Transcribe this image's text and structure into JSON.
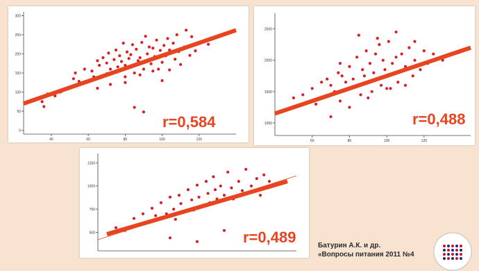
{
  "accent_color": "#e8441f",
  "point_color": "#d81e24",
  "chart_data": [
    {
      "type": "scatter",
      "title": "",
      "xlabel": "",
      "ylabel": "",
      "xlim": [
        25,
        140
      ],
      "ylim": [
        -10,
        310
      ],
      "xticks": [
        40,
        60,
        80,
        100,
        120
      ],
      "yticks": [
        0,
        50,
        100,
        150,
        200,
        250,
        300
      ],
      "r_label": "r=0,584",
      "fit": {
        "x": [
          25,
          140
        ],
        "y": [
          70,
          262
        ]
      },
      "grid": false,
      "x": [
        35,
        36,
        38,
        42,
        45,
        52,
        53,
        55,
        58,
        62,
        63,
        65,
        66,
        68,
        70,
        70,
        71,
        72,
        74,
        75,
        76,
        77,
        78,
        79,
        80,
        80,
        81,
        82,
        83,
        84,
        85,
        86,
        87,
        88,
        89,
        90,
        91,
        92,
        93,
        94,
        95,
        96,
        97,
        98,
        99,
        100,
        101,
        102,
        103,
        104,
        105,
        106,
        107,
        108,
        109,
        110,
        112,
        113,
        115,
        116,
        118,
        120,
        125,
        130,
        85,
        90,
        100,
        65,
        72,
        80,
        88,
        95,
        104
      ],
      "y": [
        75,
        62,
        95,
        90,
        100,
        135,
        150,
        128,
        160,
        155,
        140,
        182,
        170,
        190,
        148,
        176,
        202,
        160,
        185,
        210,
        166,
        195,
        180,
        228,
        170,
        140,
        205,
        188,
        198,
        224,
        150,
        212,
        182,
        190,
        230,
        160,
        246,
        200,
        218,
        174,
        215,
        193,
        236,
        160,
        209,
        178,
        222,
        195,
        240,
        158,
        205,
        228,
        186,
        250,
        206,
        172,
        218,
        262,
        196,
        245,
        208,
        230,
        225,
        245,
        60,
        48,
        130,
        110,
        120,
        125,
        145,
        155,
        210
      ]
    },
    {
      "type": "scatter",
      "title": "",
      "xlabel": "",
      "ylabel": "",
      "xlim": [
        40,
        145
      ],
      "ylim": [
        800,
        2750
      ],
      "xticks": [
        60,
        80,
        100,
        120
      ],
      "yticks": [
        1000,
        1500,
        2000,
        2500
      ],
      "r_label": "r=0,488",
      "fit": {
        "x": [
          40,
          145
        ],
        "y": [
          1150,
          2200
        ]
      },
      "grid": false,
      "x": [
        50,
        55,
        60,
        62,
        65,
        68,
        70,
        72,
        74,
        75,
        76,
        78,
        80,
        81,
        82,
        84,
        85,
        86,
        87,
        88,
        89,
        90,
        91,
        92,
        93,
        94,
        95,
        96,
        97,
        98,
        99,
        100,
        101,
        102,
        103,
        104,
        105,
        106,
        108,
        110,
        112,
        114,
        115,
        118,
        120,
        122,
        125,
        130,
        70,
        80,
        90,
        100,
        110,
        85,
        95,
        105,
        115,
        75
      ],
      "y": [
        1400,
        1450,
        1550,
        1300,
        1650,
        1700,
        1600,
        1500,
        1800,
        1350,
        1750,
        1650,
        1900,
        1550,
        1700,
        2050,
        1600,
        1450,
        1850,
        1750,
        2150,
        1650,
        1950,
        1500,
        1800,
        2100,
        1700,
        2250,
        1600,
        2000,
        1850,
        1750,
        2300,
        1550,
        1950,
        1800,
        2050,
        1650,
        2100,
        1900,
        2200,
        1750,
        2000,
        1850,
        2150,
        1950,
        2100,
        2000,
        1100,
        1250,
        1400,
        1550,
        1600,
        2400,
        2350,
        2450,
        2300,
        1950
      ]
    },
    {
      "type": "scatter",
      "title": "",
      "xlabel": "",
      "ylabel": "",
      "xlim": [
        20,
        130
      ],
      "ylim": [
        300,
        1350
      ],
      "xticks": [],
      "yticks": [
        500,
        750,
        1000,
        1250
      ],
      "r_label": "r=0,489",
      "fit": {
        "x": [
          25,
          125
        ],
        "y": [
          480,
          1050
        ]
      },
      "grid": false,
      "x": [
        30,
        35,
        40,
        45,
        48,
        50,
        52,
        55,
        58,
        60,
        62,
        63,
        65,
        66,
        68,
        70,
        72,
        73,
        75,
        76,
        78,
        80,
        81,
        82,
        84,
        85,
        86,
        88,
        90,
        92,
        94,
        95,
        98,
        100,
        102,
        105,
        108,
        110,
        112,
        115,
        60,
        75,
        90
      ],
      "y": [
        550,
        520,
        650,
        700,
        620,
        760,
        680,
        820,
        700,
        880,
        750,
        640,
        900,
        810,
        720,
        960,
        850,
        740,
        1010,
        880,
        790,
        1050,
        920,
        820,
        1100,
        960,
        860,
        1000,
        900,
        1150,
        980,
        860,
        1050,
        950,
        1180,
        1000,
        1080,
        900,
        1120,
        1050,
        440,
        400,
        520
      ]
    }
  ],
  "citation": {
    "line1": "Батурин А.К. и др.",
    "line2": "«Вопросы питания 2011 №4"
  }
}
